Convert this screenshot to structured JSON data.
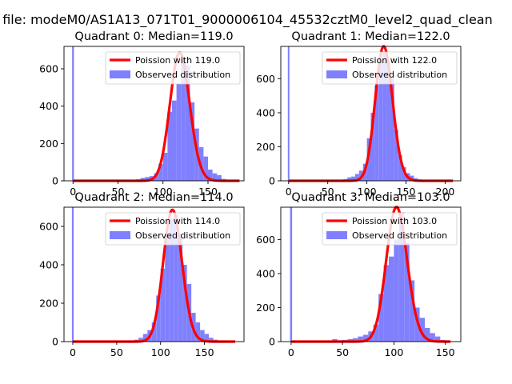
{
  "figure": {
    "title": "n file: modeM0/AS1A13_071T01_9000006104_45532cztM0_level2_quad_clean"
  },
  "chart_data": [
    {
      "type": "bar",
      "title": "Quadrant 0: Median=119.0",
      "xlim": [
        -10,
        190
      ],
      "ylim": [
        0,
        720
      ],
      "xticks": [
        0,
        50,
        100,
        150
      ],
      "yticks": [
        0,
        200,
        400,
        600
      ],
      "median": 119.0,
      "spike": {
        "x": 0,
        "height": 720
      },
      "poisson_label": "Poission with 119.0",
      "observed_label": "Observed distribution",
      "hist_x": [
        65,
        70,
        75,
        80,
        85,
        90,
        95,
        100,
        105,
        110,
        115,
        120,
        125,
        130,
        135,
        140,
        145,
        150,
        155,
        160,
        165,
        170
      ],
      "hist_y": [
        5,
        8,
        15,
        20,
        25,
        40,
        90,
        150,
        370,
        430,
        520,
        660,
        620,
        420,
        280,
        180,
        130,
        60,
        40,
        30,
        10,
        5
      ],
      "curve_xmax": 185
    },
    {
      "type": "bar",
      "title": "Quadrant 1: Median=122.0",
      "xlim": [
        -10,
        220
      ],
      "ylim": [
        0,
        790
      ],
      "xticks": [
        0,
        50,
        100,
        150,
        200
      ],
      "yticks": [
        0,
        200,
        400,
        600
      ],
      "median": 122.0,
      "spike": {
        "x": 0,
        "height": 790
      },
      "poisson_label": "Poission with 122.0",
      "observed_label": "Observed distribution",
      "hist_x": [
        65,
        70,
        75,
        80,
        85,
        90,
        95,
        100,
        105,
        110,
        115,
        120,
        125,
        130,
        135,
        140,
        145,
        150,
        155,
        160,
        165
      ],
      "hist_y": [
        5,
        10,
        20,
        25,
        40,
        60,
        100,
        250,
        400,
        560,
        700,
        760,
        700,
        600,
        300,
        150,
        80,
        45,
        30,
        15,
        8
      ],
      "curve_xmax": 210
    },
    {
      "type": "bar",
      "title": "Quadrant 2: Median=114.0",
      "xlim": [
        -10,
        195
      ],
      "ylim": [
        0,
        700
      ],
      "xticks": [
        0,
        50,
        100,
        150
      ],
      "yticks": [
        0,
        200,
        400,
        600
      ],
      "median": 114.0,
      "spike": {
        "x": 0,
        "height": 700
      },
      "poisson_label": "Poission with 114.0",
      "observed_label": "Observed distribution",
      "hist_x": [
        70,
        75,
        80,
        85,
        90,
        95,
        100,
        105,
        110,
        115,
        120,
        125,
        130,
        135,
        140,
        145,
        150,
        155,
        160
      ],
      "hist_y": [
        10,
        20,
        40,
        60,
        100,
        240,
        380,
        560,
        640,
        660,
        560,
        400,
        300,
        150,
        100,
        60,
        40,
        20,
        10
      ],
      "curve_xmax": 185
    },
    {
      "type": "bar",
      "title": "Quadrant 3: Median=103.0",
      "xlim": [
        -10,
        165
      ],
      "ylim": [
        0,
        790
      ],
      "xticks": [
        0,
        50,
        100,
        150
      ],
      "yticks": [
        0,
        200,
        400,
        600
      ],
      "median": 103.0,
      "spike": {
        "x": 0,
        "height": 790
      },
      "poisson_label": "Poission with 103.0",
      "observed_label": "Observed distribution",
      "hist_x": [
        40,
        45,
        50,
        55,
        60,
        65,
        70,
        75,
        80,
        85,
        90,
        95,
        100,
        105,
        110,
        115,
        120,
        125,
        130,
        135,
        140,
        145,
        150
      ],
      "hist_y": [
        15,
        8,
        10,
        15,
        20,
        30,
        40,
        60,
        100,
        280,
        450,
        500,
        600,
        760,
        580,
        360,
        200,
        140,
        80,
        50,
        30,
        10,
        5
      ],
      "curve_xmax": 155
    }
  ],
  "colors": {
    "histogram": "#8080ff",
    "poisson_line": "#ff0000",
    "axes": "#000000"
  }
}
